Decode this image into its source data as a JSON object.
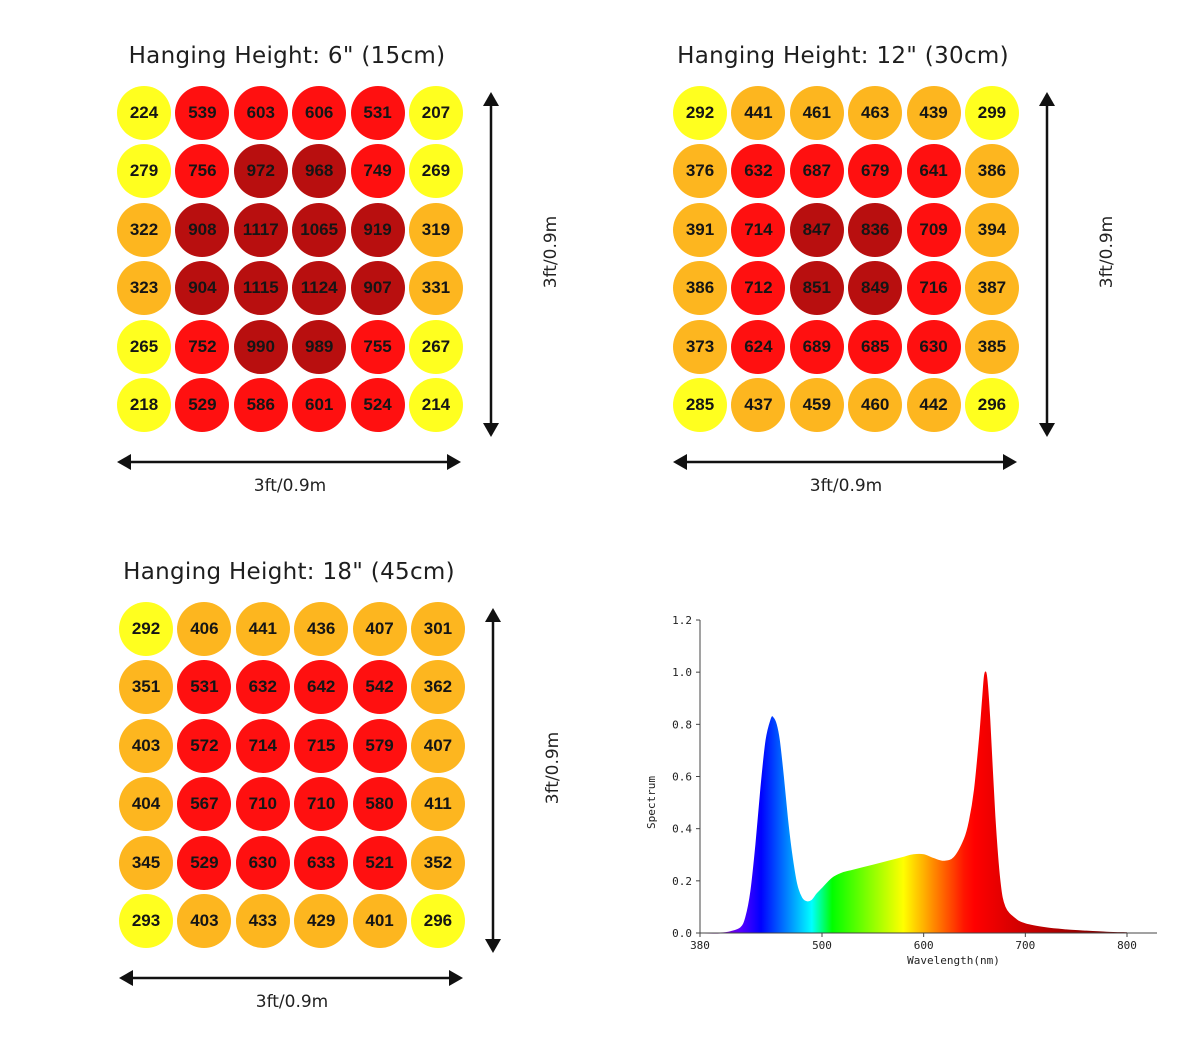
{
  "panels": [
    {
      "title": "Hanging Height: 6\" (15cm)",
      "width_label": "3ft/0.9m",
      "depth_label": "3ft/0.9m",
      "values": [
        [
          224,
          539,
          603,
          606,
          531,
          207
        ],
        [
          279,
          756,
          972,
          968,
          749,
          269
        ],
        [
          322,
          908,
          1117,
          1065,
          919,
          319
        ],
        [
          323,
          904,
          1115,
          1124,
          907,
          331
        ],
        [
          265,
          752,
          990,
          989,
          755,
          267
        ],
        [
          218,
          529,
          586,
          601,
          524,
          214
        ]
      ]
    },
    {
      "title": "Hanging Height: 12\" (30cm)",
      "width_label": "3ft/0.9m",
      "depth_label": "3ft/0.9m",
      "values": [
        [
          292,
          441,
          461,
          463,
          439,
          299
        ],
        [
          376,
          632,
          687,
          679,
          641,
          386
        ],
        [
          391,
          714,
          847,
          836,
          709,
          394
        ],
        [
          386,
          712,
          851,
          849,
          716,
          387
        ],
        [
          373,
          624,
          689,
          685,
          630,
          385
        ],
        [
          285,
          437,
          459,
          460,
          442,
          296
        ]
      ]
    },
    {
      "title": "Hanging Height: 18\" (45cm)",
      "width_label": "3ft/0.9m",
      "depth_label": "3ft/0.9m",
      "values": [
        [
          292,
          406,
          441,
          436,
          407,
          301
        ],
        [
          351,
          531,
          632,
          642,
          542,
          362
        ],
        [
          403,
          572,
          714,
          715,
          579,
          407
        ],
        [
          404,
          567,
          710,
          710,
          580,
          411
        ],
        [
          345,
          529,
          630,
          633,
          521,
          352
        ],
        [
          293,
          403,
          433,
          429,
          401,
          296
        ]
      ]
    }
  ],
  "colors": {
    "level_1": "#ffff1f",
    "level_2": "#fdb61f",
    "level_3": "#ff1010",
    "level_4": "#b80f0f",
    "arrow": "#111111"
  },
  "chart_data": [
    {
      "type": "heatmap",
      "title": "Hanging Height: 6\" (15cm)",
      "xlabel": "3ft/0.9m",
      "ylabel": "3ft/0.9m",
      "rows": 6,
      "cols": 6
    },
    {
      "type": "heatmap",
      "title": "Hanging Height: 12\" (30cm)",
      "xlabel": "3ft/0.9m",
      "ylabel": "3ft/0.9m",
      "rows": 6,
      "cols": 6
    },
    {
      "type": "heatmap",
      "title": "Hanging Height: 18\" (45cm)",
      "xlabel": "3ft/0.9m",
      "ylabel": "3ft/0.9m",
      "rows": 6,
      "cols": 6
    },
    {
      "type": "area",
      "title": "",
      "xlabel": "Wavelength(nm)",
      "ylabel": "Spectrum",
      "xlim": [
        380,
        800
      ],
      "ylim": [
        0,
        1.2
      ],
      "xticks": [
        380,
        500,
        600,
        700,
        800
      ],
      "yticks": [
        "0.0",
        "0.2",
        "0.4",
        "0.6",
        "0.8",
        "1.0",
        "1.2"
      ],
      "grid": false,
      "fill": "wavelength-colored",
      "x": [
        380,
        400,
        410,
        420,
        425,
        430,
        435,
        440,
        445,
        450,
        452,
        455,
        458,
        462,
        466,
        470,
        475,
        480,
        485,
        490,
        495,
        500,
        510,
        520,
        530,
        540,
        550,
        560,
        570,
        580,
        590,
        600,
        610,
        620,
        630,
        640,
        645,
        650,
        655,
        658,
        660,
        662,
        665,
        670,
        675,
        680,
        690,
        700,
        720,
        740,
        760,
        780,
        800
      ],
      "y": [
        0.0,
        0.0,
        0.005,
        0.02,
        0.06,
        0.16,
        0.34,
        0.56,
        0.74,
        0.82,
        0.825,
        0.8,
        0.74,
        0.6,
        0.44,
        0.31,
        0.19,
        0.135,
        0.12,
        0.125,
        0.15,
        0.17,
        0.21,
        0.23,
        0.24,
        0.25,
        0.26,
        0.27,
        0.28,
        0.29,
        0.3,
        0.3,
        0.285,
        0.275,
        0.29,
        0.36,
        0.43,
        0.55,
        0.75,
        0.9,
        0.99,
        0.98,
        0.82,
        0.45,
        0.2,
        0.1,
        0.055,
        0.035,
        0.02,
        0.012,
        0.007,
        0.003,
        0.001
      ]
    }
  ]
}
